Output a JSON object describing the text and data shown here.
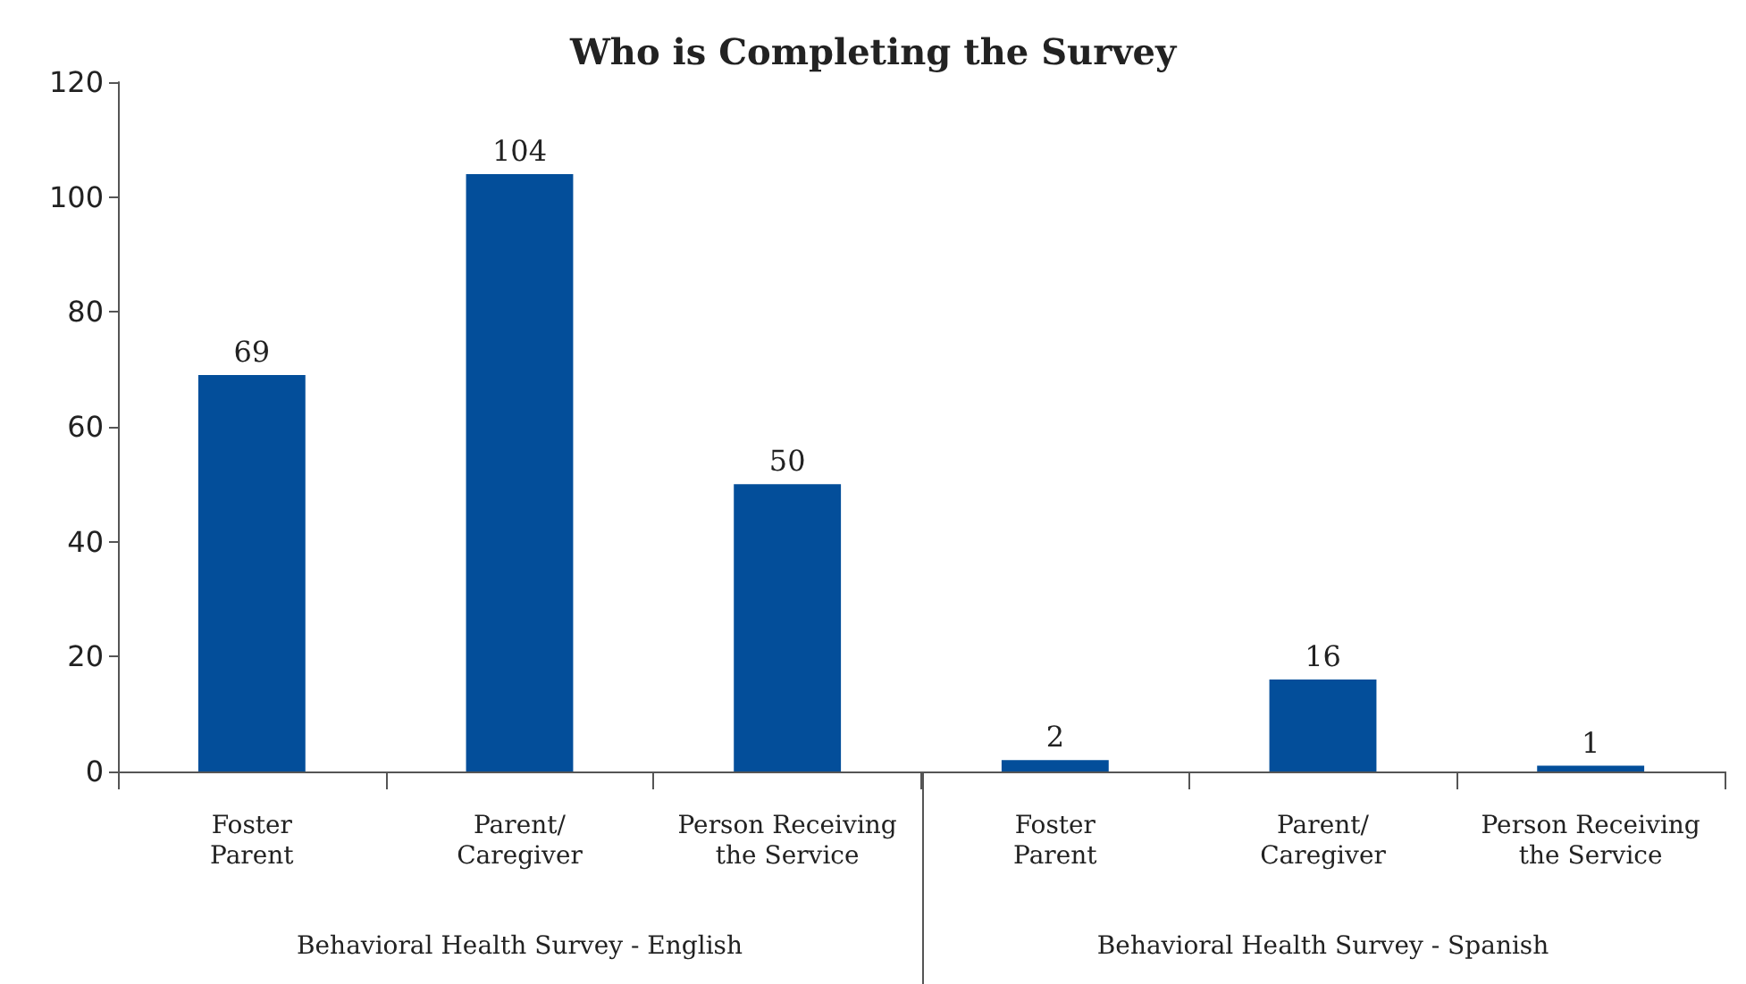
{
  "chart_data": {
    "type": "bar",
    "title": "Who is Completing the Survey",
    "categories": [
      "Foster\nParent",
      "Parent/\nCaregiver",
      "Person Receiving\nthe Service",
      "Foster\nParent",
      "Parent/\nCaregiver",
      "Person Receiving\nthe Service"
    ],
    "values": [
      69,
      104,
      50,
      2,
      16,
      1
    ],
    "color": "#034e9a",
    "ylim": [
      0,
      120
    ],
    "yticks": [
      0,
      20,
      40,
      60,
      80,
      100,
      120
    ],
    "grid": false,
    "data_labels": true,
    "annotations": [
      "Behavioral Health Survey - English",
      "Behavioral Health Survey - Spanish"
    ]
  }
}
